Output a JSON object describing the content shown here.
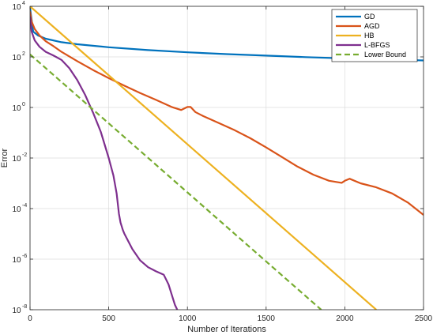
{
  "chart_data": {
    "type": "line",
    "xlabel": "Number of Iterations",
    "ylabel": "Error",
    "xlim": [
      0,
      2500
    ],
    "ylim_log10": [
      -8,
      4
    ],
    "y_scale": "log",
    "grid": true,
    "legend_position": "top-right",
    "x_ticks": [
      "0",
      "500",
      "1000",
      "1500",
      "2000",
      "2500"
    ],
    "y_ticks": [
      {
        "base": "10",
        "exp": "4"
      },
      {
        "base": "10",
        "exp": "2"
      },
      {
        "base": "10",
        "exp": "0"
      },
      {
        "base": "10",
        "exp": "-2"
      },
      {
        "base": "10",
        "exp": "-4"
      },
      {
        "base": "10",
        "exp": "-6"
      },
      {
        "base": "10",
        "exp": "-8"
      }
    ],
    "series": [
      {
        "name": "GD",
        "color": "#0072BD",
        "dash": "solid",
        "x": [
          0,
          20,
          50,
          100,
          200,
          300,
          500,
          750,
          1000,
          1250,
          1500,
          1750,
          2000,
          2250,
          2500
        ],
        "log10_y": [
          3.95,
          3.0,
          2.85,
          2.72,
          2.58,
          2.5,
          2.38,
          2.27,
          2.18,
          2.11,
          2.05,
          1.99,
          1.94,
          1.9,
          1.86
        ]
      },
      {
        "name": "AGD",
        "color": "#D95319",
        "dash": "solid",
        "x": [
          0,
          10,
          30,
          60,
          100,
          150,
          200,
          300,
          400,
          500,
          600,
          700,
          800,
          900,
          960,
          1000,
          1020,
          1050,
          1100,
          1200,
          1300,
          1400,
          1500,
          1600,
          1700,
          1800,
          1900,
          1980,
          2000,
          2030,
          2100,
          2200,
          2300,
          2400,
          2500
        ],
        "log10_y": [
          3.8,
          3.4,
          3.1,
          2.85,
          2.62,
          2.42,
          2.2,
          1.83,
          1.48,
          1.16,
          0.86,
          0.57,
          0.3,
          0.02,
          -0.1,
          0.02,
          0.02,
          -0.18,
          -0.34,
          -0.62,
          -0.9,
          -1.22,
          -1.58,
          -1.96,
          -2.34,
          -2.66,
          -2.9,
          -2.98,
          -2.9,
          -2.82,
          -3.0,
          -3.16,
          -3.4,
          -3.76,
          -4.25
        ]
      },
      {
        "name": "HB",
        "color": "#EDB120",
        "dash": "solid",
        "x": [
          0,
          2200
        ],
        "log10_y": [
          4.0,
          -8.0
        ]
      },
      {
        "name": "L-BFGS",
        "color": "#7E2F8E",
        "dash": "solid",
        "x": [
          0,
          10,
          30,
          60,
          100,
          150,
          200,
          250,
          300,
          350,
          400,
          450,
          500,
          530,
          550,
          565,
          575,
          590,
          600,
          650,
          700,
          750,
          800,
          850,
          880,
          900,
          920,
          935
        ],
        "log10_y": [
          3.6,
          3.0,
          2.65,
          2.4,
          2.2,
          2.05,
          1.88,
          1.55,
          1.08,
          0.5,
          -0.2,
          -0.97,
          -2.0,
          -2.7,
          -3.4,
          -4.2,
          -4.55,
          -4.85,
          -5.0,
          -5.6,
          -6.05,
          -6.32,
          -6.48,
          -6.62,
          -7.0,
          -7.4,
          -7.8,
          -8.0
        ]
      },
      {
        "name": "Lower Bound",
        "color": "#77AC30",
        "dash": "dashed",
        "x": [
          0,
          1850
        ],
        "log10_y": [
          2.1,
          -8.0
        ]
      }
    ]
  }
}
